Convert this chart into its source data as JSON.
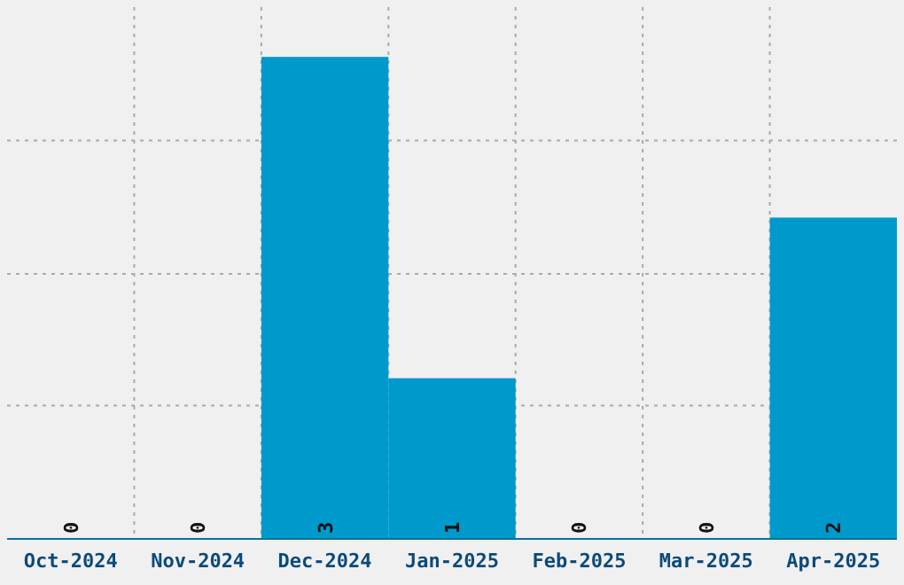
{
  "chart_data": {
    "type": "bar",
    "categories": [
      "Oct-2024",
      "Nov-2024",
      "Dec-2024",
      "Jan-2025",
      "Feb-2025",
      "Mar-2025",
      "Apr-2025"
    ],
    "values": [
      0,
      0,
      3,
      1,
      0,
      0,
      2
    ],
    "color": "#0099cc",
    "ylim": [
      0,
      3.31
    ],
    "yticks": [
      {
        "value": 0.83,
        "label": null
      },
      {
        "value": 1.65,
        "label": null
      },
      {
        "value": 2.48,
        "label": null
      }
    ],
    "tick_labels": "x",
    "grid": true,
    "data_labels": true
  }
}
